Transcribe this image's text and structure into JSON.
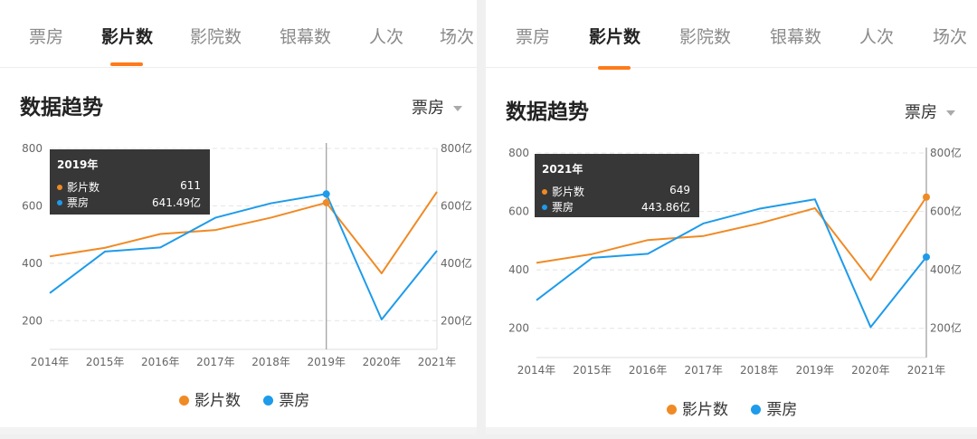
{
  "tabs": [
    "票房",
    "影片数",
    "影院数",
    "银幕数",
    "人次",
    "场次"
  ],
  "active_tab": "影片数",
  "section_title": "数据趋势",
  "metric_selector": "票房",
  "colors": {
    "films": "#F08A24",
    "box_office": "#1E9BEA",
    "tab_indicator": "#FF7A1A"
  },
  "icons": {
    "dropdown": "triangle-down-icon"
  },
  "left_panel": {
    "tooltip": {
      "title": "2019年",
      "rows": [
        {
          "label": "影片数",
          "value": "611"
        },
        {
          "label": "票房",
          "value": "641.49亿"
        }
      ]
    }
  },
  "right_panel": {
    "tooltip": {
      "title": "2021年",
      "rows": [
        {
          "label": "影片数",
          "value": "649"
        },
        {
          "label": "票房",
          "value": "443.86亿"
        }
      ]
    }
  },
  "chart_data": [
    {
      "type": "line",
      "x": [
        "2014年",
        "2015年",
        "2016年",
        "2017年",
        "2018年",
        "2019年",
        "2020年",
        "2021年"
      ],
      "series": [
        {
          "name": "影片数",
          "axis": "left",
          "values": [
            424,
            454,
            502,
            516,
            559,
            611,
            365,
            649
          ]
        },
        {
          "name": "票房",
          "axis": "right",
          "unit": "亿",
          "values": [
            296,
            441,
            455,
            559,
            609,
            641.49,
            204,
            443.86
          ]
        }
      ],
      "y_left": {
        "ticks": [
          "200",
          "400",
          "600",
          "800"
        ],
        "range": [
          100,
          800
        ]
      },
      "y_right": {
        "ticks": [
          "200亿",
          "400亿",
          "600亿",
          "800亿"
        ],
        "range": [
          100,
          800
        ]
      },
      "highlight_index": 5,
      "crosshair": true,
      "grid": "dashed-horizontal",
      "legend": "bottom-center"
    },
    {
      "type": "line",
      "x": [
        "2014年",
        "2015年",
        "2016年",
        "2017年",
        "2018年",
        "2019年",
        "2020年",
        "2021年"
      ],
      "series": [
        {
          "name": "影片数",
          "axis": "left",
          "values": [
            424,
            454,
            502,
            516,
            559,
            611,
            365,
            649
          ]
        },
        {
          "name": "票房",
          "axis": "right",
          "unit": "亿",
          "values": [
            296,
            441,
            455,
            559,
            609,
            641.49,
            204,
            443.86
          ]
        }
      ],
      "y_left": {
        "ticks": [
          "200",
          "400",
          "600",
          "800"
        ],
        "range": [
          100,
          800
        ]
      },
      "y_right": {
        "ticks": [
          "200亿",
          "400亿",
          "600亿",
          "800亿"
        ],
        "range": [
          100,
          800
        ]
      },
      "highlight_index": 7,
      "crosshair": true,
      "grid": "dashed-horizontal",
      "legend": "bottom-center"
    }
  ]
}
